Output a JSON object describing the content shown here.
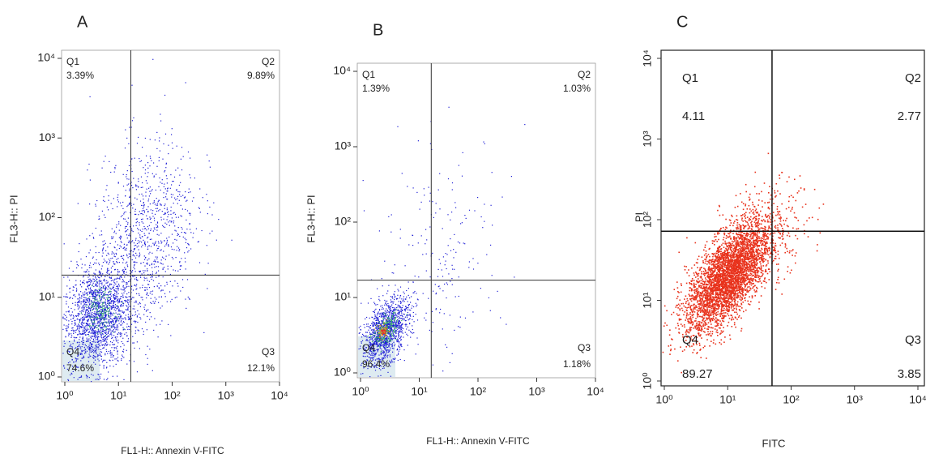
{
  "chart_data": [
    {
      "type": "scatter",
      "panel": "A",
      "xlabel": "FL1-H:: Annexin V-FITC",
      "ylabel": "FL3-H:: PI",
      "log_scale": true,
      "color": "#1f1fd6",
      "gate_color": "#333333",
      "xlim": [
        1,
        10000
      ],
      "ylim": [
        1,
        10000
      ],
      "xticks": [
        {
          "value": 1,
          "label": "10⁰"
        },
        {
          "value": 10,
          "label": "10¹"
        },
        {
          "value": 100,
          "label": "10²"
        },
        {
          "value": 1000,
          "label": "10³"
        },
        {
          "value": 10000,
          "label": "10⁴"
        }
      ],
      "yticks": [
        {
          "value": 1,
          "label": "10⁰"
        },
        {
          "value": 10,
          "label": "10¹"
        },
        {
          "value": 100,
          "label": "10²"
        },
        {
          "value": 1000,
          "label": "10³"
        },
        {
          "value": 10000,
          "label": "10⁴"
        }
      ],
      "gate_x": 17,
      "gate_y": 19,
      "quadrants": {
        "names": [
          "Q1",
          "Q2",
          "Q3",
          "Q4"
        ],
        "values": [
          3.39,
          9.89,
          12.1,
          74.6
        ],
        "value_labels": [
          "3.39%",
          "9.89%",
          "12.1%",
          "74.6%"
        ]
      }
    },
    {
      "type": "scatter",
      "panel": "B",
      "xlabel": "FL1-H:: Annexin V-FITC",
      "ylabel": "FL3-H:: PI",
      "log_scale": true,
      "color": "#1f1fd6",
      "gate_color": "#333333",
      "xlim": [
        1,
        10000
      ],
      "ylim": [
        1,
        10000
      ],
      "xticks": [
        {
          "value": 1,
          "label": "10⁰"
        },
        {
          "value": 10,
          "label": "10¹"
        },
        {
          "value": 100,
          "label": "10²"
        },
        {
          "value": 1000,
          "label": "10³"
        },
        {
          "value": 10000,
          "label": "10⁴"
        }
      ],
      "yticks": [
        {
          "value": 1,
          "label": "10⁰"
        },
        {
          "value": 10,
          "label": "10¹"
        },
        {
          "value": 100,
          "label": "10²"
        },
        {
          "value": 1000,
          "label": "10³"
        },
        {
          "value": 10000,
          "label": "10⁴"
        }
      ],
      "gate_x": 16,
      "gate_y": 17,
      "quadrants": {
        "names": [
          "Q1",
          "Q2",
          "Q3",
          "Q4"
        ],
        "values": [
          1.39,
          1.03,
          1.18,
          96.4
        ],
        "value_labels": [
          "1.39%",
          "1.03%",
          "1.18%",
          "96.4%"
        ]
      }
    },
    {
      "type": "scatter",
      "panel": "C",
      "xlabel": "FITC",
      "ylabel": "PI",
      "log_scale": true,
      "color": "#e8321c",
      "gate_color": "#111111",
      "xlim": [
        1,
        10000
      ],
      "ylim": [
        1,
        10000
      ],
      "xticks": [
        {
          "value": 1,
          "label": "10⁰"
        },
        {
          "value": 10,
          "label": "10¹"
        },
        {
          "value": 100,
          "label": "10²"
        },
        {
          "value": 1000,
          "label": "10³"
        },
        {
          "value": 10000,
          "label": "10⁴"
        }
      ],
      "yticks": [
        {
          "value": 1,
          "label": "10⁰"
        },
        {
          "value": 10,
          "label": "10¹"
        },
        {
          "value": 100,
          "label": "10²"
        },
        {
          "value": 1000,
          "label": "10³"
        },
        {
          "value": 10000,
          "label": "10⁴"
        }
      ],
      "gate_x": 50,
      "gate_y": 72,
      "quadrants": {
        "names": [
          "Q1",
          "Q2",
          "Q3",
          "Q4"
        ],
        "values": [
          4.11,
          2.77,
          3.85,
          89.27
        ]
      }
    }
  ]
}
